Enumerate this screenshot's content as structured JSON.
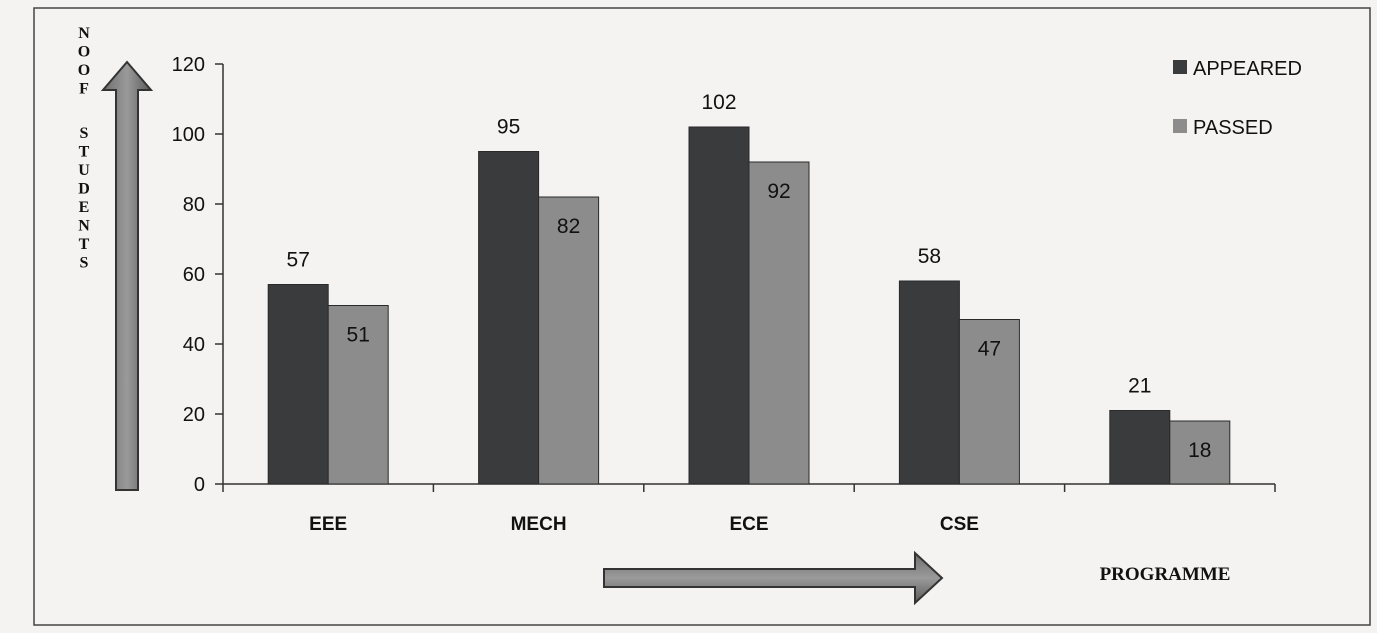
{
  "chart_data": {
    "type": "bar",
    "categories": [
      "EEE",
      "MECH",
      "ECE",
      "CSE",
      ""
    ],
    "series": [
      {
        "name": "APPEARED",
        "values": [
          57,
          95,
          102,
          58,
          21
        ],
        "color": "#3a3b3d"
      },
      {
        "name": "PASSED",
        "values": [
          51,
          82,
          92,
          47,
          18
        ],
        "color": "#8c8c8c"
      }
    ],
    "ylabel": "NO OF STUDENTS",
    "xlabel": "PROGRAMME",
    "ylim": [
      0,
      120
    ],
    "yticks": [
      0,
      20,
      40,
      60,
      80,
      100,
      120
    ],
    "legend": "top-right",
    "grid": false
  }
}
